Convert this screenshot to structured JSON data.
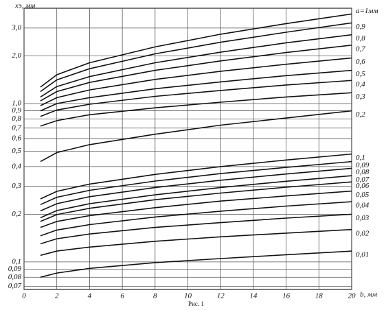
{
  "chart_data": {
    "type": "line",
    "ylabel": "xэ, мм",
    "xlabel": "b, мм",
    "caption": "Рис. 1",
    "x": [
      1,
      2,
      4,
      8,
      12,
      16,
      20
    ],
    "xlim": [
      0,
      20
    ],
    "xticks": [
      0,
      2,
      4,
      6,
      8,
      10,
      12,
      14,
      16,
      18,
      20
    ],
    "ylim": [
      0.067,
      4.0
    ],
    "ylog": true,
    "grid": true,
    "yticks": [
      {
        "value": 0.07,
        "label": "0,07"
      },
      {
        "value": 0.08,
        "label": "0,08"
      },
      {
        "value": 0.09,
        "label": "0,09"
      },
      {
        "value": 0.1,
        "label": "0,1"
      },
      {
        "value": 0.2,
        "label": "0,2"
      },
      {
        "value": 0.3,
        "label": "0,3"
      },
      {
        "value": 0.4,
        "label": "0,4"
      },
      {
        "value": 0.5,
        "label": "0,5"
      },
      {
        "value": 0.6,
        "label": "0,6"
      },
      {
        "value": 0.7,
        "label": "0,7"
      },
      {
        "value": 0.8,
        "label": "0,8"
      },
      {
        "value": 0.9,
        "label": "0,9"
      },
      {
        "value": 1.0,
        "label": "1,0"
      },
      {
        "value": 2.0,
        "label": "2,0"
      },
      {
        "value": 3.0,
        "label": "3,0"
      }
    ],
    "series": [
      {
        "name": "a=1мм",
        "color": "#111",
        "values": [
          1.27,
          1.52,
          1.81,
          2.28,
          2.74,
          3.2,
          3.68
        ]
      },
      {
        "name": "0,9",
        "color": "#111",
        "values": [
          1.19,
          1.41,
          1.66,
          2.06,
          2.44,
          2.82,
          3.23
        ]
      },
      {
        "name": "0,8",
        "color": "#111",
        "values": [
          1.1,
          1.28,
          1.48,
          1.81,
          2.11,
          2.42,
          2.72
        ]
      },
      {
        "name": "0,7",
        "color": "#111",
        "values": [
          1.04,
          1.19,
          1.36,
          1.62,
          1.86,
          2.1,
          2.34
        ]
      },
      {
        "name": "0,6",
        "color": "#111",
        "values": [
          0.97,
          1.09,
          1.22,
          1.42,
          1.6,
          1.77,
          1.94
        ]
      },
      {
        "name": "0,5",
        "color": "#111",
        "values": [
          0.9,
          1.0,
          1.09,
          1.24,
          1.37,
          1.5,
          1.62
        ]
      },
      {
        "name": "0,4",
        "color": "#111",
        "values": [
          0.83,
          0.91,
          0.99,
          1.11,
          1.21,
          1.31,
          1.4
        ]
      },
      {
        "name": "0,3",
        "color": "#111",
        "values": [
          0.72,
          0.78,
          0.85,
          0.94,
          1.02,
          1.1,
          1.17
        ]
      },
      {
        "name": "0,2",
        "color": "#111",
        "values": [
          0.43,
          0.49,
          0.55,
          0.64,
          0.73,
          0.81,
          0.9
        ]
      },
      {
        "name": "0,1",
        "color": "#111",
        "values": [
          0.25,
          0.279,
          0.31,
          0.357,
          0.4,
          0.44,
          0.48
        ]
      },
      {
        "name": "0,09",
        "color": "#111",
        "values": [
          0.23,
          0.256,
          0.283,
          0.324,
          0.361,
          0.395,
          0.43
        ]
      },
      {
        "name": "0,08",
        "color": "#111",
        "values": [
          0.21,
          0.233,
          0.258,
          0.295,
          0.328,
          0.359,
          0.39
        ]
      },
      {
        "name": "0,07",
        "color": "#111",
        "values": [
          0.19,
          0.211,
          0.233,
          0.265,
          0.295,
          0.323,
          0.35
        ]
      },
      {
        "name": "0,06",
        "color": "#111",
        "values": [
          0.18,
          0.199,
          0.218,
          0.247,
          0.272,
          0.296,
          0.32
        ]
      },
      {
        "name": "0,05",
        "color": "#111",
        "values": [
          0.165,
          0.18,
          0.196,
          0.22,
          0.242,
          0.261,
          0.28
        ]
      },
      {
        "name": "0,04",
        "color": "#111",
        "values": [
          0.146,
          0.159,
          0.172,
          0.192,
          0.209,
          0.225,
          0.24
        ]
      },
      {
        "name": "0,03",
        "color": "#111",
        "values": [
          0.13,
          0.14,
          0.15,
          0.165,
          0.177,
          0.189,
          0.2
        ]
      },
      {
        "name": "0,02",
        "color": "#111",
        "values": [
          0.11,
          0.117,
          0.124,
          0.135,
          0.144,
          0.152,
          0.16
        ]
      },
      {
        "name": "0,01",
        "color": "#111",
        "values": [
          0.08,
          0.085,
          0.091,
          0.099,
          0.105,
          0.111,
          0.117
        ]
      }
    ]
  }
}
